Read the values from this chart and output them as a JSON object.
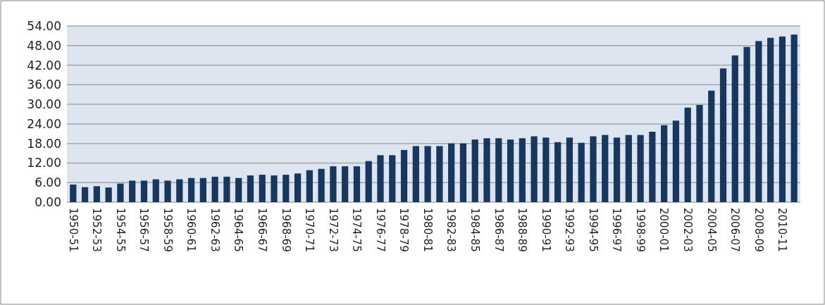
{
  "chart_data": {
    "type": "bar",
    "categories": [
      "1950-51",
      null,
      "1952-53",
      null,
      "1954-55",
      null,
      "1956-57",
      null,
      "1958-59",
      null,
      "1960-61",
      null,
      "1962-63",
      null,
      "1964-65",
      null,
      "1966-67",
      null,
      "1968-69",
      null,
      "1970-71",
      null,
      "1972-73",
      null,
      "1974-75",
      null,
      "1976-77",
      null,
      "1978-79",
      null,
      "1980-81",
      null,
      "1982-83",
      null,
      "1984-85",
      null,
      "1986-87",
      null,
      "1988-89",
      null,
      "1990-91",
      null,
      "1992-93",
      null,
      "1994-95",
      null,
      "1996-97",
      null,
      "1998-99",
      null,
      "2000-01",
      null,
      "2002-03",
      null,
      "2004-05",
      null,
      "2006-07",
      null,
      "2008-09",
      null,
      "2010-11",
      null
    ],
    "values": [
      5.4,
      4.6,
      4.9,
      4.5,
      5.7,
      6.6,
      6.6,
      7.0,
      6.6,
      7.0,
      7.4,
      7.4,
      7.8,
      7.8,
      7.4,
      8.2,
      8.4,
      8.2,
      8.4,
      8.8,
      9.8,
      10.2,
      11.0,
      11.0,
      11.0,
      12.6,
      14.4,
      14.4,
      16.0,
      17.2,
      17.2,
      17.2,
      18.0,
      18.0,
      19.2,
      19.6,
      19.6,
      19.2,
      19.6,
      20.2,
      19.8,
      18.4,
      19.8,
      18.2,
      20.2,
      20.6,
      19.8,
      20.6,
      20.6,
      21.6,
      23.6,
      25.0,
      29.0,
      29.8,
      34.2,
      41.0,
      45.0,
      47.6,
      49.4,
      50.4,
      50.8,
      51.4
    ],
    "color": "#17375e",
    "ylim": [
      0,
      54
    ],
    "yticks": [
      {
        "value": 0,
        "label": "0.00"
      },
      {
        "value": 6,
        "label": "6.00"
      },
      {
        "value": 12,
        "label": "12.00"
      },
      {
        "value": 18,
        "label": "18.00"
      },
      {
        "value": 24,
        "label": "24.00"
      },
      {
        "value": 30,
        "label": "30.00"
      },
      {
        "value": 36,
        "label": "36.00"
      },
      {
        "value": 42,
        "label": "42.00"
      },
      {
        "value": 48,
        "label": "48.00"
      },
      {
        "value": 54,
        "label": "54.00"
      }
    ],
    "grid": "y"
  }
}
